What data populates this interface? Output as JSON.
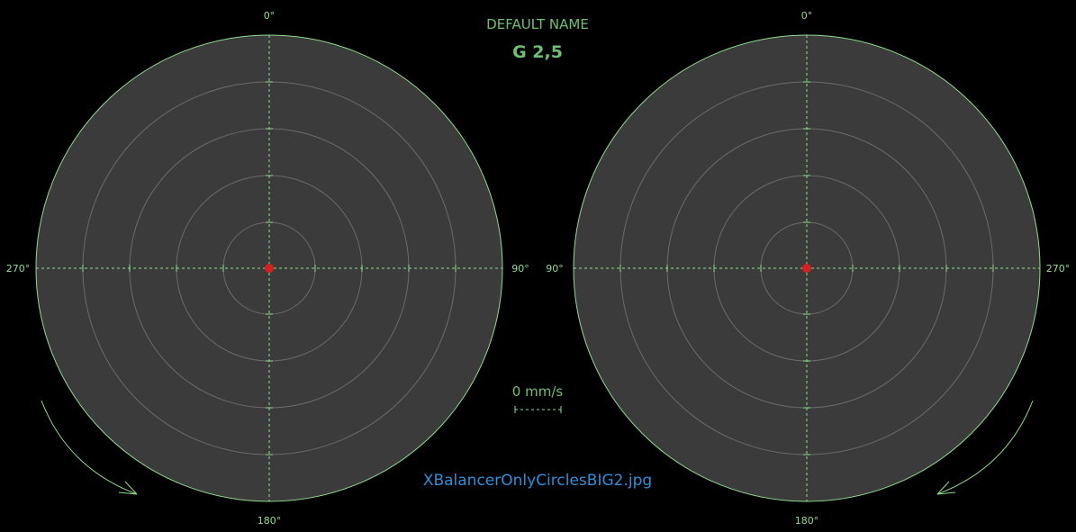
{
  "header": {
    "title": "DEFAULT NAME",
    "grade": "G 2,5"
  },
  "scale": {
    "speed_label": "0 mm/s"
  },
  "footer": {
    "filename": "XBalancerOnlyCirclesBIG2.jpg"
  },
  "left_plane": {
    "top_label": "0°",
    "left_label": "270°",
    "right_label": "90°",
    "bottom_label": "180°",
    "rotation": "clockwise"
  },
  "right_plane": {
    "top_label": "0°",
    "left_label": "90°",
    "right_label": "270°",
    "bottom_label": "180°",
    "rotation": "counter-clockwise"
  },
  "colors": {
    "background": "#000000",
    "disc": "#3b3b3b",
    "outline": "#8fdc8f",
    "grid": "#6b6b6b",
    "text": "#6fbf73",
    "marker": "#d42020",
    "filename": "#2f8fd8"
  }
}
